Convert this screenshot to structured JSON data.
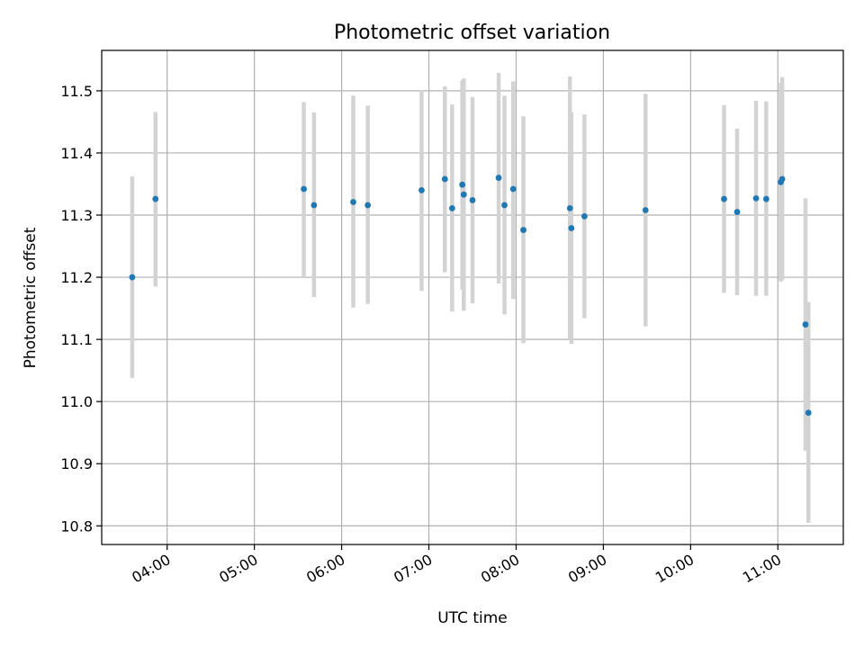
{
  "chart_data": {
    "type": "scatter",
    "title": "Photometric offset variation",
    "xlabel": "UTC time",
    "ylabel": "Photometric offset",
    "x_unit": "time of day (UTC), HH:MM",
    "xlim": [
      "03:15",
      "11:45"
    ],
    "ylim": [
      10.77,
      11.565
    ],
    "x_ticks": [
      "04:00",
      "05:00",
      "06:00",
      "07:00",
      "08:00",
      "09:00",
      "10:00",
      "11:00"
    ],
    "y_ticks": [
      "10.8",
      "10.9",
      "11.0",
      "11.1",
      "11.2",
      "11.3",
      "11.4",
      "11.5"
    ],
    "grid": true,
    "colors": {
      "points": "#1f77b4",
      "error_bars": "#d3d3d3",
      "grid": "#b0b0b0",
      "axes": "#000000"
    },
    "points": [
      {
        "x": "03:36",
        "y": 11.2,
        "lo": 11.038,
        "hi": 11.362
      },
      {
        "x": "03:52",
        "y": 11.326,
        "lo": 11.185,
        "hi": 11.466
      },
      {
        "x": "05:34",
        "y": 11.342,
        "lo": 11.2,
        "hi": 11.482
      },
      {
        "x": "05:41",
        "y": 11.316,
        "lo": 11.168,
        "hi": 11.465
      },
      {
        "x": "06:08",
        "y": 11.321,
        "lo": 11.151,
        "hi": 11.492
      },
      {
        "x": "06:18",
        "y": 11.316,
        "lo": 11.157,
        "hi": 11.476
      },
      {
        "x": "06:55",
        "y": 11.34,
        "lo": 11.178,
        "hi": 11.501
      },
      {
        "x": "07:11",
        "y": 11.358,
        "lo": 11.208,
        "hi": 11.507
      },
      {
        "x": "07:16",
        "y": 11.311,
        "lo": 11.145,
        "hi": 11.478
      },
      {
        "x": "07:23",
        "y": 11.349,
        "lo": 11.18,
        "hi": 11.517
      },
      {
        "x": "07:24",
        "y": 11.333,
        "lo": 11.146,
        "hi": 11.52
      },
      {
        "x": "07:30",
        "y": 11.324,
        "lo": 11.158,
        "hi": 11.49
      },
      {
        "x": "07:48",
        "y": 11.36,
        "lo": 11.19,
        "hi": 11.529
      },
      {
        "x": "07:52",
        "y": 11.316,
        "lo": 11.14,
        "hi": 11.492
      },
      {
        "x": "07:58",
        "y": 11.342,
        "lo": 11.165,
        "hi": 11.515
      },
      {
        "x": "08:05",
        "y": 11.276,
        "lo": 11.094,
        "hi": 11.459
      },
      {
        "x": "08:37",
        "y": 11.311,
        "lo": 11.1,
        "hi": 11.523
      },
      {
        "x": "08:38",
        "y": 11.279,
        "lo": 11.093,
        "hi": 11.466
      },
      {
        "x": "08:47",
        "y": 11.298,
        "lo": 11.134,
        "hi": 11.462
      },
      {
        "x": "09:29",
        "y": 11.308,
        "lo": 11.121,
        "hi": 11.495
      },
      {
        "x": "10:23",
        "y": 11.326,
        "lo": 11.175,
        "hi": 11.477
      },
      {
        "x": "10:32",
        "y": 11.305,
        "lo": 11.171,
        "hi": 11.439
      },
      {
        "x": "10:45",
        "y": 11.327,
        "lo": 11.17,
        "hi": 11.484
      },
      {
        "x": "10:52",
        "y": 11.326,
        "lo": 11.17,
        "hi": 11.483
      },
      {
        "x": "11:02",
        "y": 11.353,
        "lo": 11.193,
        "hi": 11.513
      },
      {
        "x": "11:03",
        "y": 11.358,
        "lo": 11.196,
        "hi": 11.522
      },
      {
        "x": "11:19",
        "y": 11.124,
        "lo": 10.921,
        "hi": 11.327
      },
      {
        "x": "11:21",
        "y": 10.982,
        "lo": 10.805,
        "hi": 11.16
      }
    ]
  }
}
